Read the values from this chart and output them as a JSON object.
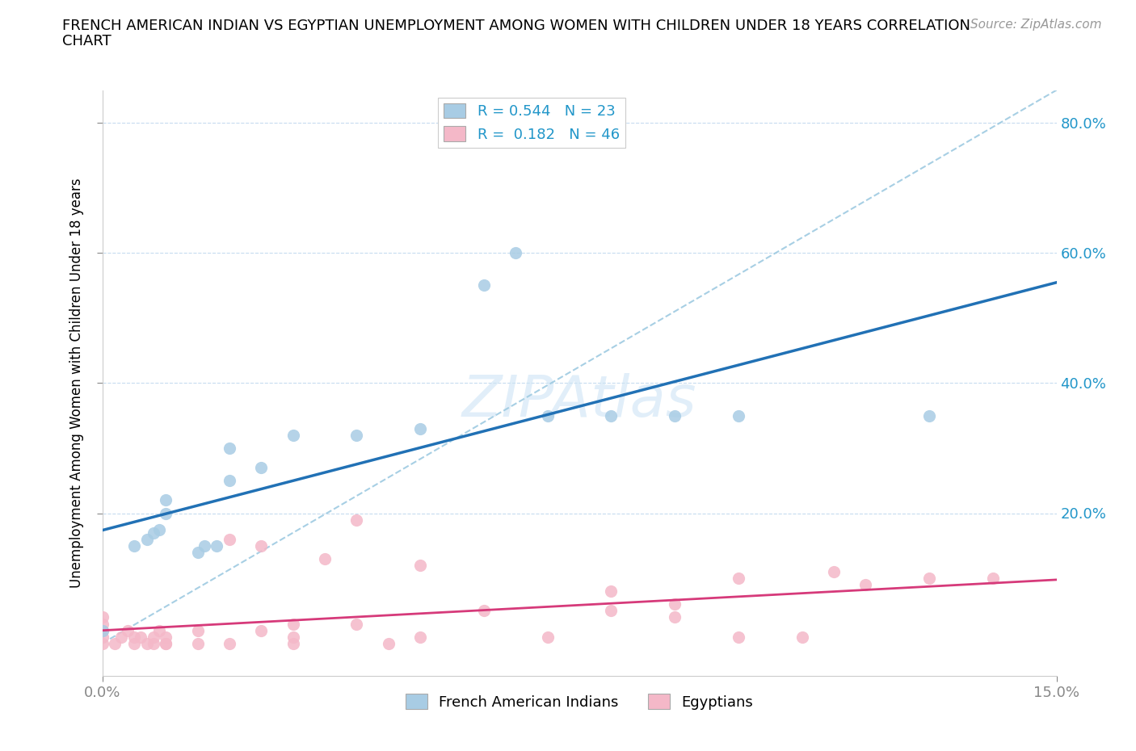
{
  "title_line1": "FRENCH AMERICAN INDIAN VS EGYPTIAN UNEMPLOYMENT AMONG WOMEN WITH CHILDREN UNDER 18 YEARS CORRELATION",
  "title_line2": "CHART",
  "source": "Source: ZipAtlas.com",
  "ylabel": "Unemployment Among Women with Children Under 18 years",
  "watermark": "ZIPAtlas",
  "legend_r1": "R = 0.544",
  "legend_n1": "N = 23",
  "legend_r2": "R =  0.182",
  "legend_n2": "N = 46",
  "blue_color": "#a8cce4",
  "pink_color": "#f4b8c8",
  "blue_line_color": "#2171b5",
  "pink_line_color": "#d63a7a",
  "dashed_line_color": "#9ecae1",
  "french_x": [
    0.0,
    0.005,
    0.007,
    0.008,
    0.009,
    0.01,
    0.01,
    0.015,
    0.016,
    0.018,
    0.02,
    0.02,
    0.025,
    0.03,
    0.04,
    0.05,
    0.06,
    0.065,
    0.07,
    0.08,
    0.09,
    0.1,
    0.13
  ],
  "french_y": [
    0.02,
    0.15,
    0.16,
    0.17,
    0.175,
    0.2,
    0.22,
    0.14,
    0.15,
    0.15,
    0.25,
    0.3,
    0.27,
    0.32,
    0.32,
    0.33,
    0.55,
    0.6,
    0.35,
    0.35,
    0.35,
    0.35,
    0.35
  ],
  "egyptian_x": [
    0.0,
    0.0,
    0.0,
    0.0,
    0.0,
    0.002,
    0.003,
    0.004,
    0.005,
    0.005,
    0.006,
    0.007,
    0.008,
    0.008,
    0.009,
    0.01,
    0.01,
    0.01,
    0.015,
    0.015,
    0.02,
    0.02,
    0.025,
    0.025,
    0.03,
    0.03,
    0.03,
    0.035,
    0.04,
    0.04,
    0.045,
    0.05,
    0.05,
    0.06,
    0.07,
    0.08,
    0.08,
    0.09,
    0.09,
    0.1,
    0.1,
    0.11,
    0.115,
    0.12,
    0.13,
    0.14
  ],
  "egyptian_y": [
    0.0,
    0.01,
    0.02,
    0.03,
    0.04,
    0.0,
    0.01,
    0.02,
    0.0,
    0.01,
    0.01,
    0.0,
    0.0,
    0.01,
    0.02,
    0.0,
    0.0,
    0.01,
    0.0,
    0.02,
    0.0,
    0.16,
    0.02,
    0.15,
    0.0,
    0.01,
    0.03,
    0.13,
    0.03,
    0.19,
    0.0,
    0.01,
    0.12,
    0.05,
    0.01,
    0.05,
    0.08,
    0.04,
    0.06,
    0.01,
    0.1,
    0.01,
    0.11,
    0.09,
    0.1,
    0.1
  ],
  "xmin": 0.0,
  "xmax": 0.15,
  "ymin": -0.05,
  "ymax": 0.85,
  "ytick_vals": [
    0.2,
    0.4,
    0.6,
    0.8
  ],
  "ytick_labels": [
    "20.0%",
    "40.0%",
    "60.0%",
    "80.0%"
  ],
  "xtick_vals": [
    0.0,
    0.15
  ],
  "xtick_labels": [
    "0.0%",
    "15.0%"
  ]
}
